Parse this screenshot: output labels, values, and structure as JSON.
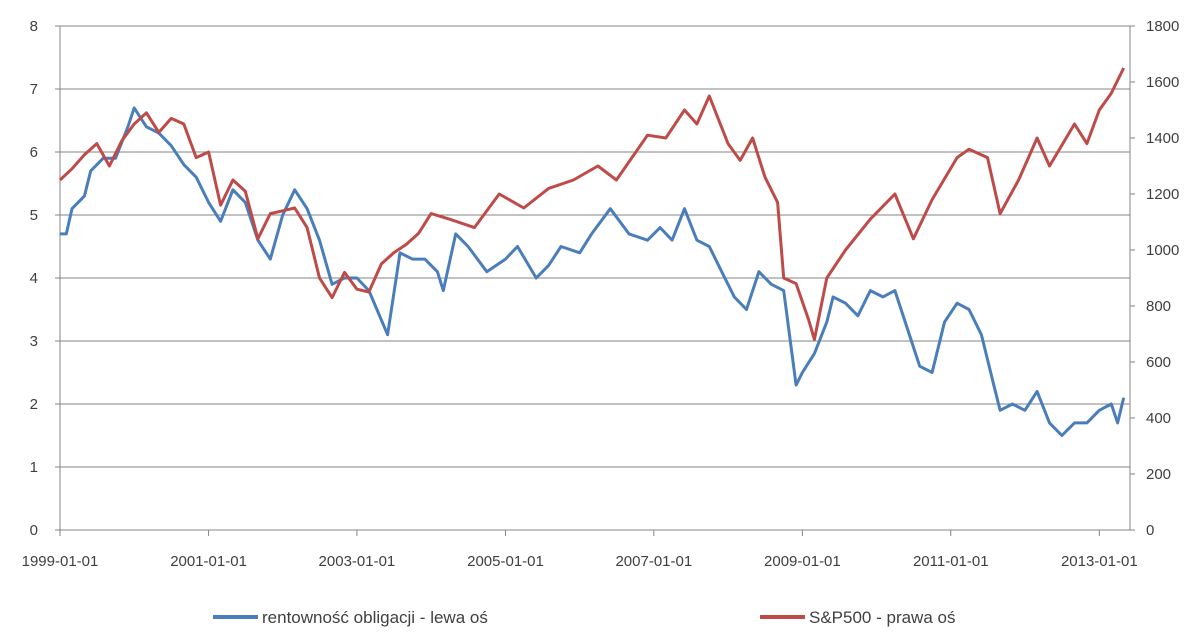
{
  "chart_data": {
    "type": "line",
    "title": "",
    "xlabel": "",
    "x_ticks": [
      "1999-01-01",
      "2001-01-01",
      "2003-01-01",
      "2005-01-01",
      "2007-01-01",
      "2009-01-01",
      "2011-01-01",
      "2013-01-01"
    ],
    "xlim": [
      "1999-01-01",
      "2013-06-01"
    ],
    "y_left": {
      "ticks": [
        0,
        1,
        2,
        3,
        4,
        5,
        6,
        7,
        8
      ],
      "ylim": [
        0,
        8
      ]
    },
    "y_right": {
      "ticks": [
        0,
        200,
        400,
        600,
        800,
        1000,
        1200,
        1400,
        1600,
        1800
      ],
      "ylim": [
        0,
        1800
      ]
    },
    "grid": true,
    "legend_position": "bottom",
    "series": [
      {
        "name": "rentowność obligacji - lewa oś",
        "axis": "left",
        "color": "#4a7ebb",
        "points": [
          [
            "1999-01-01",
            4.7
          ],
          [
            "1999-02-01",
            4.7
          ],
          [
            "1999-03-01",
            5.1
          ],
          [
            "1999-05-01",
            5.3
          ],
          [
            "1999-06-01",
            5.7
          ],
          [
            "1999-08-01",
            5.9
          ],
          [
            "1999-10-01",
            5.9
          ],
          [
            "1999-12-01",
            6.4
          ],
          [
            "2000-01-01",
            6.7
          ],
          [
            "2000-03-01",
            6.4
          ],
          [
            "2000-05-01",
            6.3
          ],
          [
            "2000-07-01",
            6.1
          ],
          [
            "2000-09-01",
            5.8
          ],
          [
            "2000-11-01",
            5.6
          ],
          [
            "2001-01-01",
            5.2
          ],
          [
            "2001-03-01",
            4.9
          ],
          [
            "2001-05-01",
            5.4
          ],
          [
            "2001-07-01",
            5.2
          ],
          [
            "2001-09-01",
            4.6
          ],
          [
            "2001-11-01",
            4.3
          ],
          [
            "2002-01-01",
            5.0
          ],
          [
            "2002-03-01",
            5.4
          ],
          [
            "2002-05-01",
            5.1
          ],
          [
            "2002-07-01",
            4.6
          ],
          [
            "2002-09-01",
            3.9
          ],
          [
            "2002-11-01",
            4.0
          ],
          [
            "2003-01-01",
            4.0
          ],
          [
            "2003-03-01",
            3.8
          ],
          [
            "2003-06-01",
            3.1
          ],
          [
            "2003-08-01",
            4.4
          ],
          [
            "2003-10-01",
            4.3
          ],
          [
            "2003-12-01",
            4.3
          ],
          [
            "2004-02-01",
            4.1
          ],
          [
            "2004-03-01",
            3.8
          ],
          [
            "2004-05-01",
            4.7
          ],
          [
            "2004-07-01",
            4.5
          ],
          [
            "2004-10-01",
            4.1
          ],
          [
            "2005-01-01",
            4.3
          ],
          [
            "2005-03-01",
            4.5
          ],
          [
            "2005-06-01",
            4.0
          ],
          [
            "2005-08-01",
            4.2
          ],
          [
            "2005-10-01",
            4.5
          ],
          [
            "2006-01-01",
            4.4
          ],
          [
            "2006-03-01",
            4.7
          ],
          [
            "2006-06-01",
            5.1
          ],
          [
            "2006-09-01",
            4.7
          ],
          [
            "2006-12-01",
            4.6
          ],
          [
            "2007-02-01",
            4.8
          ],
          [
            "2007-04-01",
            4.6
          ],
          [
            "2007-06-01",
            5.1
          ],
          [
            "2007-08-01",
            4.6
          ],
          [
            "2007-10-01",
            4.5
          ],
          [
            "2007-12-01",
            4.1
          ],
          [
            "2008-02-01",
            3.7
          ],
          [
            "2008-04-01",
            3.5
          ],
          [
            "2008-06-01",
            4.1
          ],
          [
            "2008-08-01",
            3.9
          ],
          [
            "2008-10-01",
            3.8
          ],
          [
            "2008-12-01",
            2.3
          ],
          [
            "2009-01-01",
            2.5
          ],
          [
            "2009-03-01",
            2.8
          ],
          [
            "2009-05-01",
            3.3
          ],
          [
            "2009-06-01",
            3.7
          ],
          [
            "2009-08-01",
            3.6
          ],
          [
            "2009-10-01",
            3.4
          ],
          [
            "2009-12-01",
            3.8
          ],
          [
            "2010-02-01",
            3.7
          ],
          [
            "2010-04-01",
            3.8
          ],
          [
            "2010-06-01",
            3.2
          ],
          [
            "2010-08-01",
            2.6
          ],
          [
            "2010-10-01",
            2.5
          ],
          [
            "2010-12-01",
            3.3
          ],
          [
            "2011-02-01",
            3.6
          ],
          [
            "2011-04-01",
            3.5
          ],
          [
            "2011-06-01",
            3.1
          ],
          [
            "2011-08-01",
            2.3
          ],
          [
            "2011-09-01",
            1.9
          ],
          [
            "2011-11-01",
            2.0
          ],
          [
            "2012-01-01",
            1.9
          ],
          [
            "2012-03-01",
            2.2
          ],
          [
            "2012-05-01",
            1.7
          ],
          [
            "2012-07-01",
            1.5
          ],
          [
            "2012-09-01",
            1.7
          ],
          [
            "2012-11-01",
            1.7
          ],
          [
            "2013-01-01",
            1.9
          ],
          [
            "2013-03-01",
            2.0
          ],
          [
            "2013-04-01",
            1.7
          ],
          [
            "2013-05-01",
            2.1
          ]
        ]
      },
      {
        "name": "S&P500 - prawa oś",
        "axis": "right",
        "color": "#be4b48",
        "points": [
          [
            "1999-01-01",
            1250
          ],
          [
            "1999-03-01",
            1290
          ],
          [
            "1999-05-01",
            1340
          ],
          [
            "1999-07-01",
            1380
          ],
          [
            "1999-09-01",
            1300
          ],
          [
            "1999-11-01",
            1390
          ],
          [
            "2000-01-01",
            1450
          ],
          [
            "2000-03-01",
            1490
          ],
          [
            "2000-05-01",
            1420
          ],
          [
            "2000-07-01",
            1470
          ],
          [
            "2000-09-01",
            1450
          ],
          [
            "2000-11-01",
            1330
          ],
          [
            "2001-01-01",
            1350
          ],
          [
            "2001-03-01",
            1160
          ],
          [
            "2001-05-01",
            1250
          ],
          [
            "2001-07-01",
            1210
          ],
          [
            "2001-09-01",
            1040
          ],
          [
            "2001-11-01",
            1130
          ],
          [
            "2002-01-01",
            1140
          ],
          [
            "2002-03-01",
            1150
          ],
          [
            "2002-05-01",
            1080
          ],
          [
            "2002-07-01",
            900
          ],
          [
            "2002-09-01",
            830
          ],
          [
            "2002-11-01",
            920
          ],
          [
            "2003-01-01",
            860
          ],
          [
            "2003-03-01",
            850
          ],
          [
            "2003-05-01",
            950
          ],
          [
            "2003-07-01",
            990
          ],
          [
            "2003-09-01",
            1020
          ],
          [
            "2003-11-01",
            1060
          ],
          [
            "2004-01-01",
            1130
          ],
          [
            "2004-04-01",
            1110
          ],
          [
            "2004-08-01",
            1080
          ],
          [
            "2004-12-01",
            1200
          ],
          [
            "2005-04-01",
            1150
          ],
          [
            "2005-08-01",
            1220
          ],
          [
            "2005-12-01",
            1250
          ],
          [
            "2006-04-01",
            1300
          ],
          [
            "2006-07-01",
            1250
          ],
          [
            "2006-12-01",
            1410
          ],
          [
            "2007-03-01",
            1400
          ],
          [
            "2007-06-01",
            1500
          ],
          [
            "2007-08-01",
            1450
          ],
          [
            "2007-10-01",
            1550
          ],
          [
            "2008-01-01",
            1380
          ],
          [
            "2008-03-01",
            1320
          ],
          [
            "2008-05-01",
            1400
          ],
          [
            "2008-07-01",
            1260
          ],
          [
            "2008-09-01",
            1170
          ],
          [
            "2008-10-01",
            900
          ],
          [
            "2008-12-01",
            880
          ],
          [
            "2009-02-01",
            750
          ],
          [
            "2009-03-01",
            680
          ],
          [
            "2009-05-01",
            900
          ],
          [
            "2009-08-01",
            1000
          ],
          [
            "2009-12-01",
            1110
          ],
          [
            "2010-04-01",
            1200
          ],
          [
            "2010-07-01",
            1040
          ],
          [
            "2010-10-01",
            1180
          ],
          [
            "2011-02-01",
            1330
          ],
          [
            "2011-04-01",
            1360
          ],
          [
            "2011-07-01",
            1330
          ],
          [
            "2011-09-01",
            1130
          ],
          [
            "2011-12-01",
            1250
          ],
          [
            "2012-03-01",
            1400
          ],
          [
            "2012-05-01",
            1300
          ],
          [
            "2012-09-01",
            1450
          ],
          [
            "2012-11-01",
            1380
          ],
          [
            "2013-01-01",
            1500
          ],
          [
            "2013-03-01",
            1560
          ],
          [
            "2013-05-01",
            1650
          ]
        ]
      }
    ]
  }
}
